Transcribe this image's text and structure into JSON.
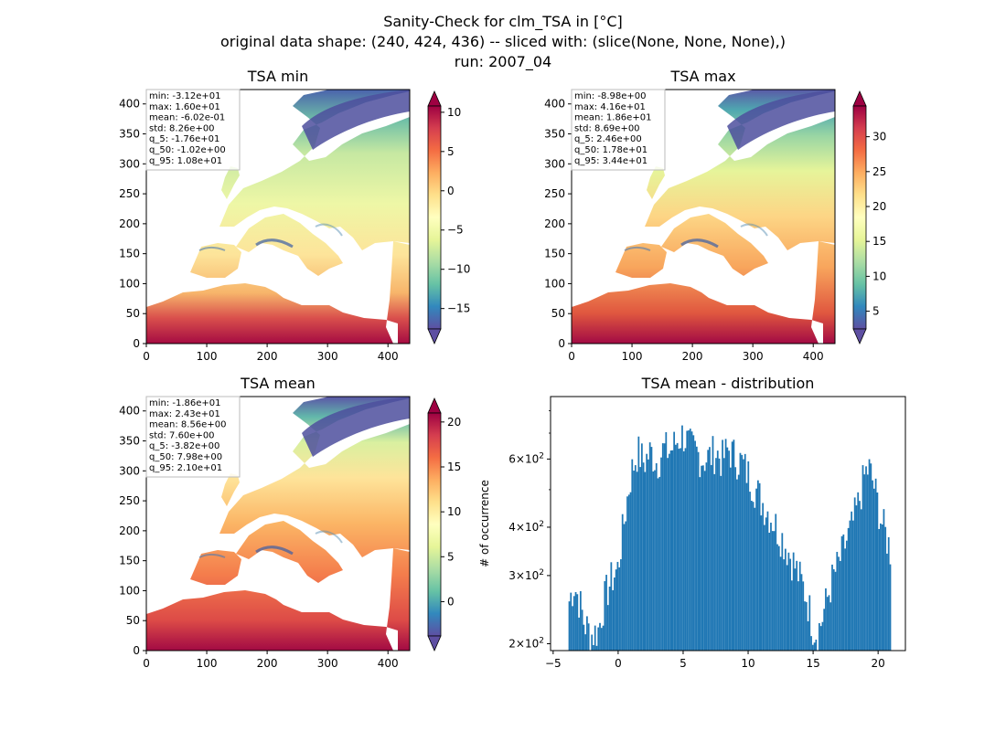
{
  "figure": {
    "title_lines": [
      "Sanity-Check for clm_TSA in [°C]",
      "original data shape: (240, 424, 436) -- sliced with: (slice(None, None, None),)",
      "run: 2007_04"
    ]
  },
  "panels": [
    {
      "title": "TSA min",
      "stats": [
        "min: -3.12e+01",
        "max: 1.60e+01",
        "mean: -6.02e-01",
        "std: 8.26e+00",
        "q_5: -1.76e+01",
        "q_50: -1.02e+00",
        "q_95: 1.08e+01"
      ],
      "xticks": [
        "0",
        "100",
        "200",
        "300",
        "400"
      ],
      "yticks": [
        "0",
        "50",
        "100",
        "150",
        "200",
        "250",
        "300",
        "350",
        "400"
      ],
      "colorbar_ticks": [
        "10",
        "5",
        "0",
        "−5",
        "−10",
        "−15"
      ],
      "colorbar_range": [
        -17.6,
        10.8
      ],
      "colormap": "Spectral_r"
    },
    {
      "title": "TSA max",
      "stats": [
        "min: -8.98e+00",
        "max: 4.16e+01",
        "mean: 1.86e+01",
        "std: 8.69e+00",
        "q_5: 2.46e+00",
        "q_50: 1.78e+01",
        "q_95: 3.44e+01"
      ],
      "xticks": [
        "0",
        "100",
        "200",
        "300",
        "400"
      ],
      "yticks": [
        "0",
        "50",
        "100",
        "150",
        "200",
        "250",
        "300",
        "350",
        "400"
      ],
      "colorbar_ticks": [
        "30",
        "25",
        "20",
        "15",
        "10",
        "5"
      ],
      "colorbar_range": [
        2.46,
        34.4
      ],
      "colormap": "Spectral_r"
    },
    {
      "title": "TSA mean",
      "stats": [
        "min: -1.86e+01",
        "max: 2.43e+01",
        "mean: 8.56e+00",
        "std: 7.60e+00",
        "q_5: -3.82e+00",
        "q_50: 7.98e+00",
        "q_95: 2.10e+01"
      ],
      "xticks": [
        "0",
        "100",
        "200",
        "300",
        "400"
      ],
      "yticks": [
        "0",
        "50",
        "100",
        "150",
        "200",
        "250",
        "300",
        "350",
        "400"
      ],
      "colorbar_ticks": [
        "20",
        "15",
        "10",
        "5",
        "0"
      ],
      "colorbar_range": [
        -3.82,
        21.0
      ],
      "colormap": "Spectral_r"
    }
  ],
  "chart_data": [
    {
      "type": "heatmap",
      "title": "TSA min",
      "xlim": [
        0,
        436
      ],
      "ylim": [
        0,
        424
      ],
      "colorbar_range": [
        -17.6,
        10.8
      ]
    },
    {
      "type": "heatmap",
      "title": "TSA max",
      "xlim": [
        0,
        436
      ],
      "ylim": [
        0,
        424
      ],
      "colorbar_range": [
        2.46,
        34.4
      ]
    },
    {
      "type": "heatmap",
      "title": "TSA mean",
      "xlim": [
        0,
        436
      ],
      "ylim": [
        0,
        424
      ],
      "colorbar_range": [
        -3.82,
        21.0
      ]
    },
    {
      "type": "bar",
      "title": "TSA mean - distribution",
      "xlabel": "",
      "ylabel": "# of occurrence",
      "yscale": "log",
      "xlim": [
        -5.2,
        22.1
      ],
      "ylim": [
        192,
        870
      ],
      "xticks": [
        "−5",
        "0",
        "5",
        "10",
        "15",
        "20"
      ],
      "yticks": [
        {
          "base": "2",
          "value": 200
        },
        {
          "base": "3",
          "value": 300
        },
        {
          "base": "4",
          "value": 400
        },
        {
          "base": "6",
          "value": 600
        }
      ],
      "bar_color": "#1f77b4",
      "bins": {
        "start": -3.82,
        "end": 21.0,
        "count": 200
      },
      "envelope": [
        [
          -3.8,
          260
        ],
        [
          -3.4,
          290
        ],
        [
          -3.0,
          265
        ],
        [
          -2.6,
          230
        ],
        [
          -2.0,
          215
        ],
        [
          -1.5,
          222
        ],
        [
          -1.0,
          270
        ],
        [
          -0.5,
          300
        ],
        [
          0.0,
          320
        ],
        [
          0.5,
          430
        ],
        [
          1.0,
          560
        ],
        [
          1.5,
          640
        ],
        [
          2.0,
          600
        ],
        [
          2.5,
          640
        ],
        [
          3.0,
          600
        ],
        [
          3.5,
          650
        ],
        [
          4.0,
          640
        ],
        [
          4.5,
          680
        ],
        [
          5.0,
          710
        ],
        [
          5.5,
          660
        ],
        [
          6.0,
          640
        ],
        [
          6.5,
          610
        ],
        [
          7.0,
          620
        ],
        [
          7.5,
          640
        ],
        [
          8.0,
          610
        ],
        [
          8.5,
          650
        ],
        [
          9.0,
          620
        ],
        [
          9.5,
          600
        ],
        [
          10.0,
          560
        ],
        [
          10.5,
          520
        ],
        [
          11.0,
          480
        ],
        [
          11.5,
          450
        ],
        [
          12.0,
          420
        ],
        [
          12.5,
          390
        ],
        [
          13.0,
          360
        ],
        [
          13.5,
          330
        ],
        [
          14.0,
          300
        ],
        [
          14.5,
          270
        ],
        [
          15.0,
          225
        ],
        [
          15.3,
          218
        ],
        [
          15.6,
          230
        ],
        [
          16.0,
          260
        ],
        [
          16.5,
          300
        ],
        [
          17.0,
          330
        ],
        [
          17.5,
          370
        ],
        [
          18.0,
          410
        ],
        [
          18.5,
          470
        ],
        [
          19.0,
          560
        ],
        [
          19.3,
          580
        ],
        [
          19.7,
          520
        ],
        [
          20.2,
          430
        ],
        [
          20.6,
          390
        ],
        [
          21.0,
          350
        ]
      ]
    }
  ]
}
